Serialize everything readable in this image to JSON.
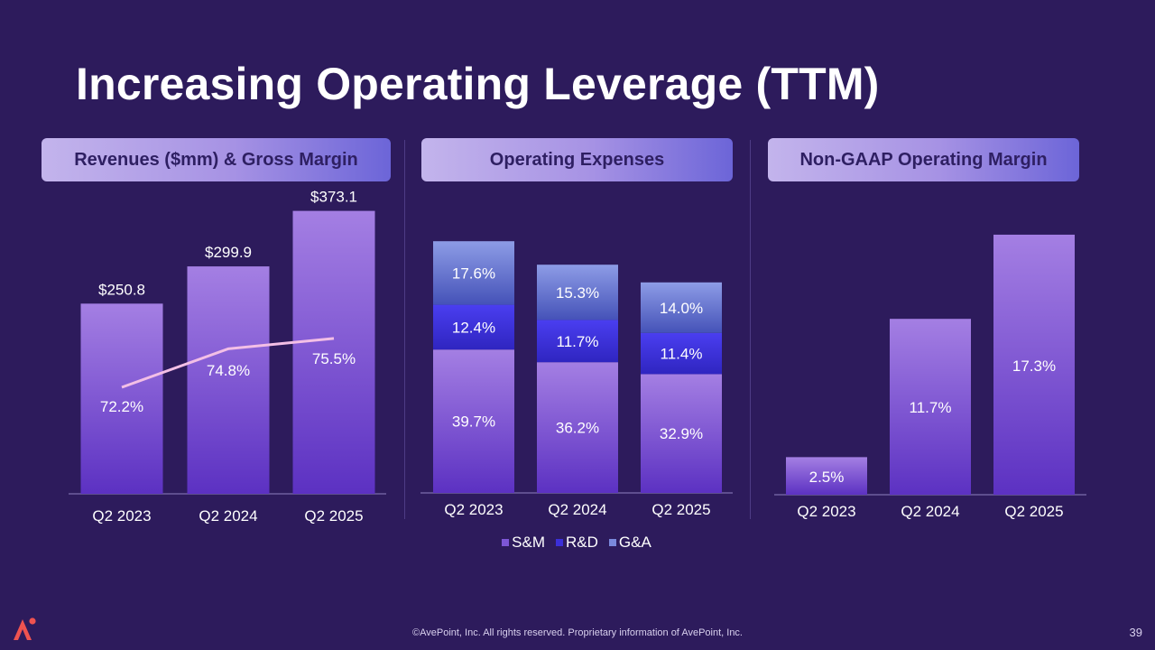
{
  "page": {
    "title": "Increasing Operating Leverage (TTM)",
    "footer": "©AvePoint, Inc. All rights reserved. Proprietary information of AvePoint, Inc.",
    "page_number": "39",
    "logo_icon": "avepoint-logo-icon"
  },
  "colors": {
    "background": "#2d1b5c",
    "bar_top": "#a47fe3",
    "bar_bottom": "#5c31c2",
    "rd": "#3b2fd8",
    "ga_top": "#8d9ce6",
    "ga_bottom": "#4552b8",
    "line": "#f3bfe6",
    "axis": "#8e80bf"
  },
  "panels": {
    "revenue": {
      "header": "Revenues ($mm) & Gross Margin"
    },
    "opex": {
      "header": "Operating Expenses"
    },
    "margin": {
      "header": "Non-GAAP Operating Margin"
    }
  },
  "chart_data": [
    {
      "type": "bar",
      "title": "Revenues ($mm) & Gross Margin",
      "categories": [
        "Q2 2023",
        "Q2 2024",
        "Q2 2025"
      ],
      "series": [
        {
          "name": "Revenues ($mm)",
          "kind": "bar",
          "values": [
            250.8,
            299.9,
            373.1
          ],
          "labels": [
            "$250.8",
            "$299.9",
            "$373.1"
          ]
        },
        {
          "name": "Gross Margin",
          "kind": "line",
          "values": [
            72.2,
            74.8,
            75.5
          ],
          "labels": [
            "72.2%",
            "74.8%",
            "75.5%"
          ]
        }
      ],
      "ylim": [
        0,
        400
      ],
      "line_ylim": [
        60,
        80
      ]
    },
    {
      "type": "bar",
      "stacked": true,
      "title": "Operating Expenses",
      "categories": [
        "Q2 2023",
        "Q2 2024",
        "Q2 2025"
      ],
      "series": [
        {
          "name": "S&M",
          "values": [
            39.7,
            36.2,
            32.9
          ],
          "labels": [
            "39.7%",
            "36.2%",
            "32.9%"
          ]
        },
        {
          "name": "R&D",
          "values": [
            12.4,
            11.7,
            11.4
          ],
          "labels": [
            "12.4%",
            "11.7%",
            "11.4%"
          ]
        },
        {
          "name": "G&A",
          "values": [
            17.6,
            15.3,
            14.0
          ],
          "labels": [
            "17.6%",
            "15.3%",
            "14.0%"
          ]
        }
      ],
      "legend": [
        "S&M",
        "R&D",
        "G&A"
      ],
      "legend_position": "bottom",
      "ylim": [
        0,
        75
      ]
    },
    {
      "type": "bar",
      "title": "Non-GAAP Operating Margin",
      "categories": [
        "Q2 2023",
        "Q2 2024",
        "Q2 2025"
      ],
      "series": [
        {
          "name": "Non-GAAP Operating Margin",
          "values": [
            2.5,
            11.7,
            17.3
          ],
          "labels": [
            "2.5%",
            "11.7%",
            "17.3%"
          ]
        }
      ],
      "ylim": [
        0,
        20
      ]
    }
  ]
}
